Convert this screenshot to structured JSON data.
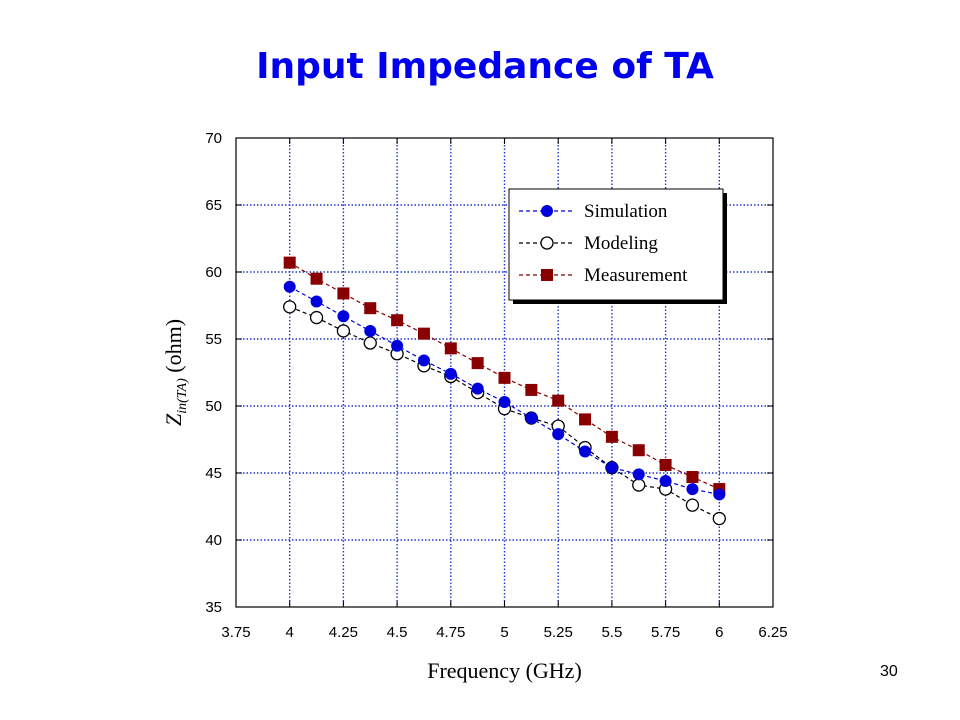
{
  "slide": {
    "title": "Input Impedance of TA",
    "page_number": "30"
  },
  "chart_data": {
    "type": "line",
    "xlabel": "Frequency (GHz)",
    "ylabel_main": "Z",
    "ylabel_sub": "in(TA)",
    "ylabel_unit": " (ohm)",
    "xlim": [
      3.75,
      6.25
    ],
    "ylim": [
      35,
      70
    ],
    "x_ticks": [
      "3.75",
      "4",
      "4.25",
      "4.5",
      "4.75",
      "5",
      "5.25",
      "5.5",
      "5.75",
      "6",
      "6.25"
    ],
    "y_ticks": [
      "35",
      "40",
      "45",
      "50",
      "55",
      "60",
      "65",
      "70"
    ],
    "grid": true,
    "legend_position": "top-right",
    "x": [
      4.0,
      4.125,
      4.25,
      4.375,
      4.5,
      4.625,
      4.75,
      4.875,
      5.0,
      5.125,
      5.25,
      5.375,
      5.5,
      5.625,
      5.75,
      5.875,
      6.0
    ],
    "series": [
      {
        "name": "Simulation",
        "marker": "filled-circle",
        "color": "#0000dd",
        "values": [
          58.9,
          57.8,
          56.7,
          55.6,
          54.5,
          53.4,
          52.4,
          51.3,
          50.3,
          49.1,
          47.9,
          46.6,
          45.4,
          44.9,
          44.4,
          43.8,
          43.4
        ]
      },
      {
        "name": "Modeling",
        "marker": "open-circle",
        "color": "#000000",
        "values": [
          57.4,
          56.6,
          55.6,
          54.7,
          53.9,
          53.0,
          52.2,
          51.0,
          49.8,
          49.1,
          48.5,
          46.9,
          45.4,
          44.1,
          43.8,
          42.6,
          41.6
        ]
      },
      {
        "name": "Measurement",
        "marker": "filled-square",
        "color": "#880000",
        "values": [
          60.7,
          59.5,
          58.4,
          57.3,
          56.4,
          55.4,
          54.3,
          53.2,
          52.1,
          51.2,
          50.4,
          49.0,
          47.7,
          46.7,
          45.6,
          44.7,
          43.8
        ]
      }
    ]
  }
}
